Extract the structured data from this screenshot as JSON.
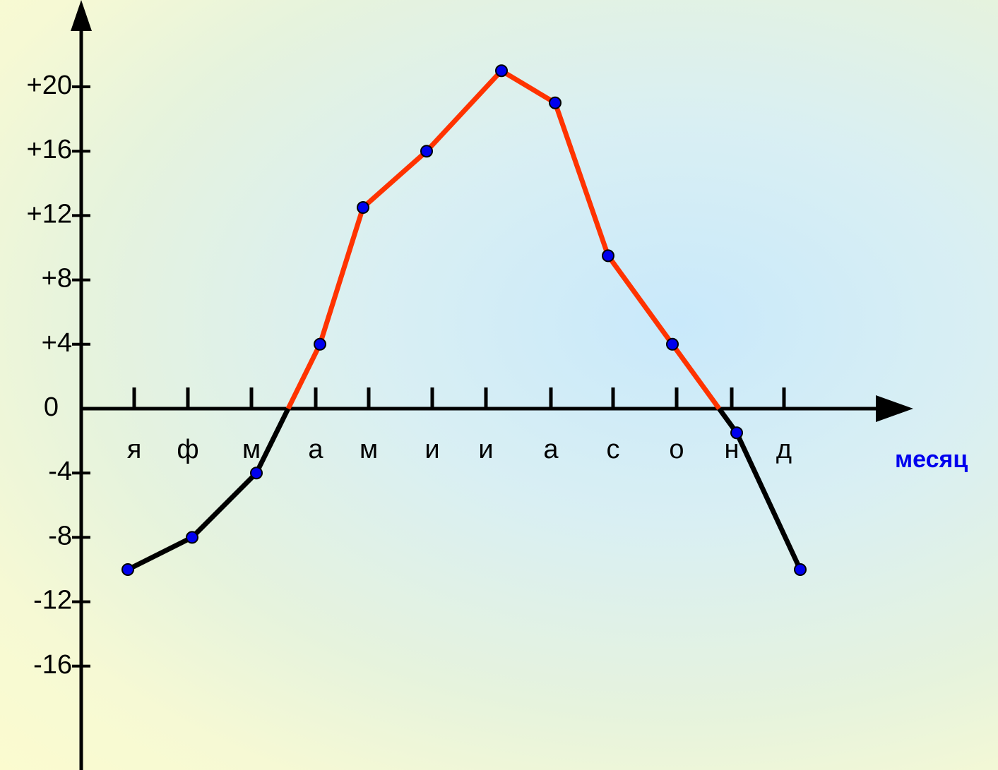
{
  "chart_data": {
    "type": "line",
    "categories": [
      "я",
      "ф",
      "м",
      "а",
      "м",
      "и",
      "и",
      "а",
      "с",
      "о",
      "н",
      "д"
    ],
    "values": [
      -10,
      -8,
      -4,
      4,
      12.5,
      16,
      21,
      19,
      9.5,
      4,
      -1.5,
      -10
    ],
    "xlabel": "месяц",
    "ylabel": "",
    "y_ticks": [
      {
        "value": 20,
        "label": "+20"
      },
      {
        "value": 16,
        "label": "+16"
      },
      {
        "value": 12,
        "label": "+12"
      },
      {
        "value": 8,
        "label": "+8"
      },
      {
        "value": 4,
        "label": "+4"
      },
      {
        "value": 0,
        "label": "0"
      },
      {
        "value": -4,
        "label": "-4"
      },
      {
        "value": -8,
        "label": "-8"
      },
      {
        "value": -12,
        "label": "-12"
      },
      {
        "value": -16,
        "label": "-16"
      }
    ],
    "ylim": [
      -20,
      24
    ],
    "grid": false,
    "colors": {
      "positive_line": "#ff3300",
      "negative_line": "#000000",
      "marker": "#0000ee",
      "axis": "#000000",
      "xlabel": "#0000ee"
    }
  }
}
